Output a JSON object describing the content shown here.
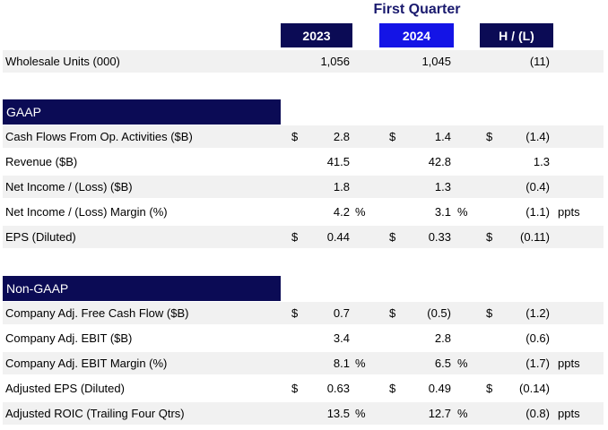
{
  "header": {
    "period": "First Quarter",
    "col_2023": "2023",
    "col_2024": "2024",
    "col_hl": "H / (L)"
  },
  "wholesale": {
    "label": "Wholesale Units (000)",
    "v2023": "1,056",
    "v2024": "1,045",
    "hl": "(11)"
  },
  "gaap": {
    "title": "GAAP",
    "rows": [
      {
        "label": "Cash Flows From Op. Activities ($B)",
        "d1": "$",
        "v2023": "2.8",
        "p1": "",
        "d2": "$",
        "v2024": "1.4",
        "p2": "",
        "d3": "$",
        "hl": "(1.4)",
        "unit": ""
      },
      {
        "label": "Revenue ($B)",
        "d1": "",
        "v2023": "41.5",
        "p1": "",
        "d2": "",
        "v2024": "42.8",
        "p2": "",
        "d3": "",
        "hl": "1.3",
        "unit": ""
      },
      {
        "label": "Net Income / (Loss) ($B)",
        "d1": "",
        "v2023": "1.8",
        "p1": "",
        "d2": "",
        "v2024": "1.3",
        "p2": "",
        "d3": "",
        "hl": "(0.4)",
        "unit": ""
      },
      {
        "label": "Net Income / (Loss) Margin (%)",
        "d1": "",
        "v2023": "4.2",
        "p1": "%",
        "d2": "",
        "v2024": "3.1",
        "p2": "%",
        "d3": "",
        "hl": "(1.1)",
        "unit": "ppts"
      },
      {
        "label": "EPS (Diluted)",
        "d1": "$",
        "v2023": "0.44",
        "p1": "",
        "d2": "$",
        "v2024": "0.33",
        "p2": "",
        "d3": "$",
        "hl": "(0.11)",
        "unit": ""
      }
    ]
  },
  "nongaap": {
    "title": "Non-GAAP",
    "rows": [
      {
        "label": "Company Adj. Free Cash Flow ($B)",
        "d1": "$",
        "v2023": "0.7",
        "p1": "",
        "d2": "$",
        "v2024": "(0.5)",
        "p2": "",
        "d3": "$",
        "hl": "(1.2)",
        "unit": ""
      },
      {
        "label": "Company Adj. EBIT ($B)",
        "d1": "",
        "v2023": "3.4",
        "p1": "",
        "d2": "",
        "v2024": "2.8",
        "p2": "",
        "d3": "",
        "hl": "(0.6)",
        "unit": ""
      },
      {
        "label": "Company Adj. EBIT Margin (%)",
        "d1": "",
        "v2023": "8.1",
        "p1": "%",
        "d2": "",
        "v2024": "6.5",
        "p2": "%",
        "d3": "",
        "hl": "(1.7)",
        "unit": "ppts"
      },
      {
        "label": "Adjusted EPS (Diluted)",
        "d1": "$",
        "v2023": "0.63",
        "p1": "",
        "d2": "$",
        "v2024": "0.49",
        "p2": "",
        "d3": "$",
        "hl": "(0.14)",
        "unit": ""
      },
      {
        "label": "Adjusted ROIC (Trailing Four Qtrs)",
        "d1": "",
        "v2023": "13.5",
        "p1": "%",
        "d2": "",
        "v2024": "12.7",
        "p2": "%",
        "d3": "",
        "hl": "(0.8)",
        "unit": "ppts"
      }
    ]
  },
  "colors": {
    "navy": "#0b0b55",
    "blue": "#1414e6",
    "row_shade": "#f1f1f1"
  }
}
